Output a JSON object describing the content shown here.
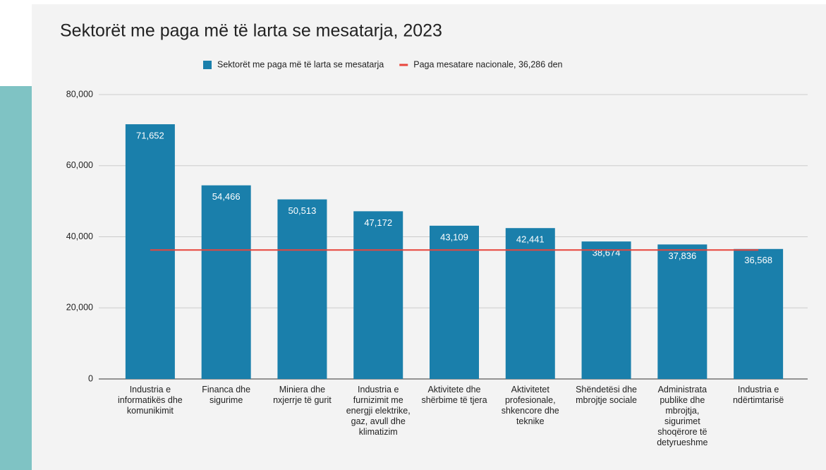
{
  "chart_data": {
    "type": "bar",
    "title": "Sektorët me paga më të larta se mesatarja, 2023",
    "categories": [
      "Industria e informatikës dhe komunikimit",
      "Financa dhe sigurime",
      "Miniera dhe nxjerrje të gurit",
      "Industria e furnizimit me energji elektrike, gaz, avull dhe klimatizim",
      "Aktivitete dhe shërbime të tjera",
      "Aktivitetet profesionale, shkencore dhe teknike",
      "Shëndetësi dhe mbrojtje sociale",
      "Administrata publike dhe mbrojtja, sigurimet shoqërore të detyrueshme",
      "Industria e ndërtimtarisë"
    ],
    "series": [
      {
        "name": "Sektorët me paga më të larta se mesatarja",
        "color": "#1a7fab",
        "values": [
          71652,
          54466,
          50513,
          47172,
          43109,
          42441,
          38674,
          37836,
          36568
        ],
        "value_labels": [
          "71,652",
          "54,466",
          "50,513",
          "47,172",
          "43,109",
          "42,441",
          "38,674",
          "37,836",
          "36,568"
        ]
      }
    ],
    "reference_line": {
      "name": "Paga mesatare nacionale, 36,286 den",
      "value": 36286,
      "color": "#e8453c"
    },
    "ylim": [
      0,
      80000
    ],
    "yticks": [
      0,
      {
        "value": 20000,
        "label": "20,000"
      },
      {
        "value": 40000,
        "label": "40,000"
      },
      {
        "value": 60000,
        "label": "60,000"
      },
      {
        "value": 80000,
        "label": "80,000"
      }
    ],
    "grid": true,
    "legend": "top"
  }
}
